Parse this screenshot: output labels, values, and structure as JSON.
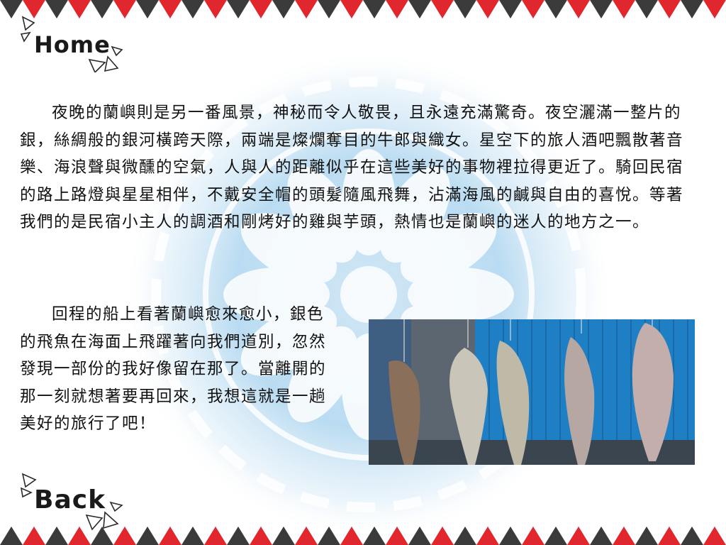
{
  "nav": {
    "home_label": "Home",
    "back_label": "Back"
  },
  "content": {
    "paragraph_1": "夜晚的蘭嶼則是另一番風景，神秘而令人敬畏，且永遠充滿驚奇。夜空灑滿一整片的銀，絲綢般的銀河橫跨天際，兩端是燦爛奪目的牛郎與織女。星空下的旅人酒吧飄散著音樂、海浪聲與微醺的空氣，人與人的距離似乎在這些美好的事物裡拉得更近了。騎回民宿的路上路燈與星星相伴，不戴安全帽的頭髮隨風飛舞，沾滿海風的鹹與自由的喜悅。等著我們的是民宿小主人的調酒和剛烤好的雞與芋頭，熱情也是蘭嶼的迷人的地方之一。",
    "paragraph_2": "回程的船上看著蘭嶼愈來愈小，銀色的飛魚在海面上飛躍著向我們道別，忽然發現一部份的我好像留在那了。當離開的那一刻就想著要再回來，我想這就是一趟美好的旅行了吧！"
  },
  "colors": {
    "zigzag_red": "#e0262f",
    "zigzag_dark": "#3b3b3b",
    "pattern_blue": "#9fcbe7",
    "wall_blue": "#1f7fc4"
  },
  "icons": {
    "home_decoration": "triangle-outline-icon",
    "back_decoration": "triangle-outline-icon"
  }
}
